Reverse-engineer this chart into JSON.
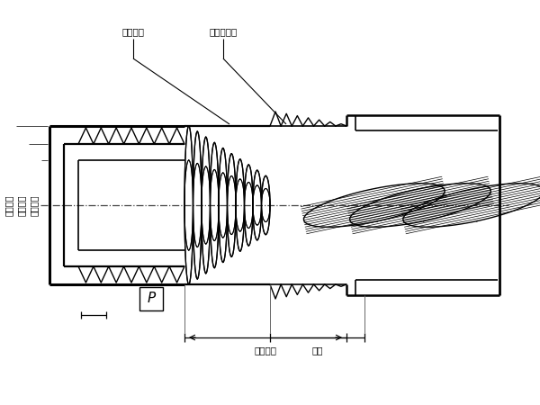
{
  "bg_color": "#ffffff",
  "line_color": "#000000",
  "labels": {
    "complete_thread": "完整螺纹",
    "incomplete_thread": "不完整螺纹",
    "major_dia": "螺纹大径",
    "pitch_dia": "螺纹中径",
    "minor_dia": "螺纹小径",
    "effective_thread": "有效螺纹",
    "runout": "螺尾",
    "pitch_label": "P"
  },
  "figure_size": [
    6.0,
    4.5
  ],
  "dpi": 100
}
